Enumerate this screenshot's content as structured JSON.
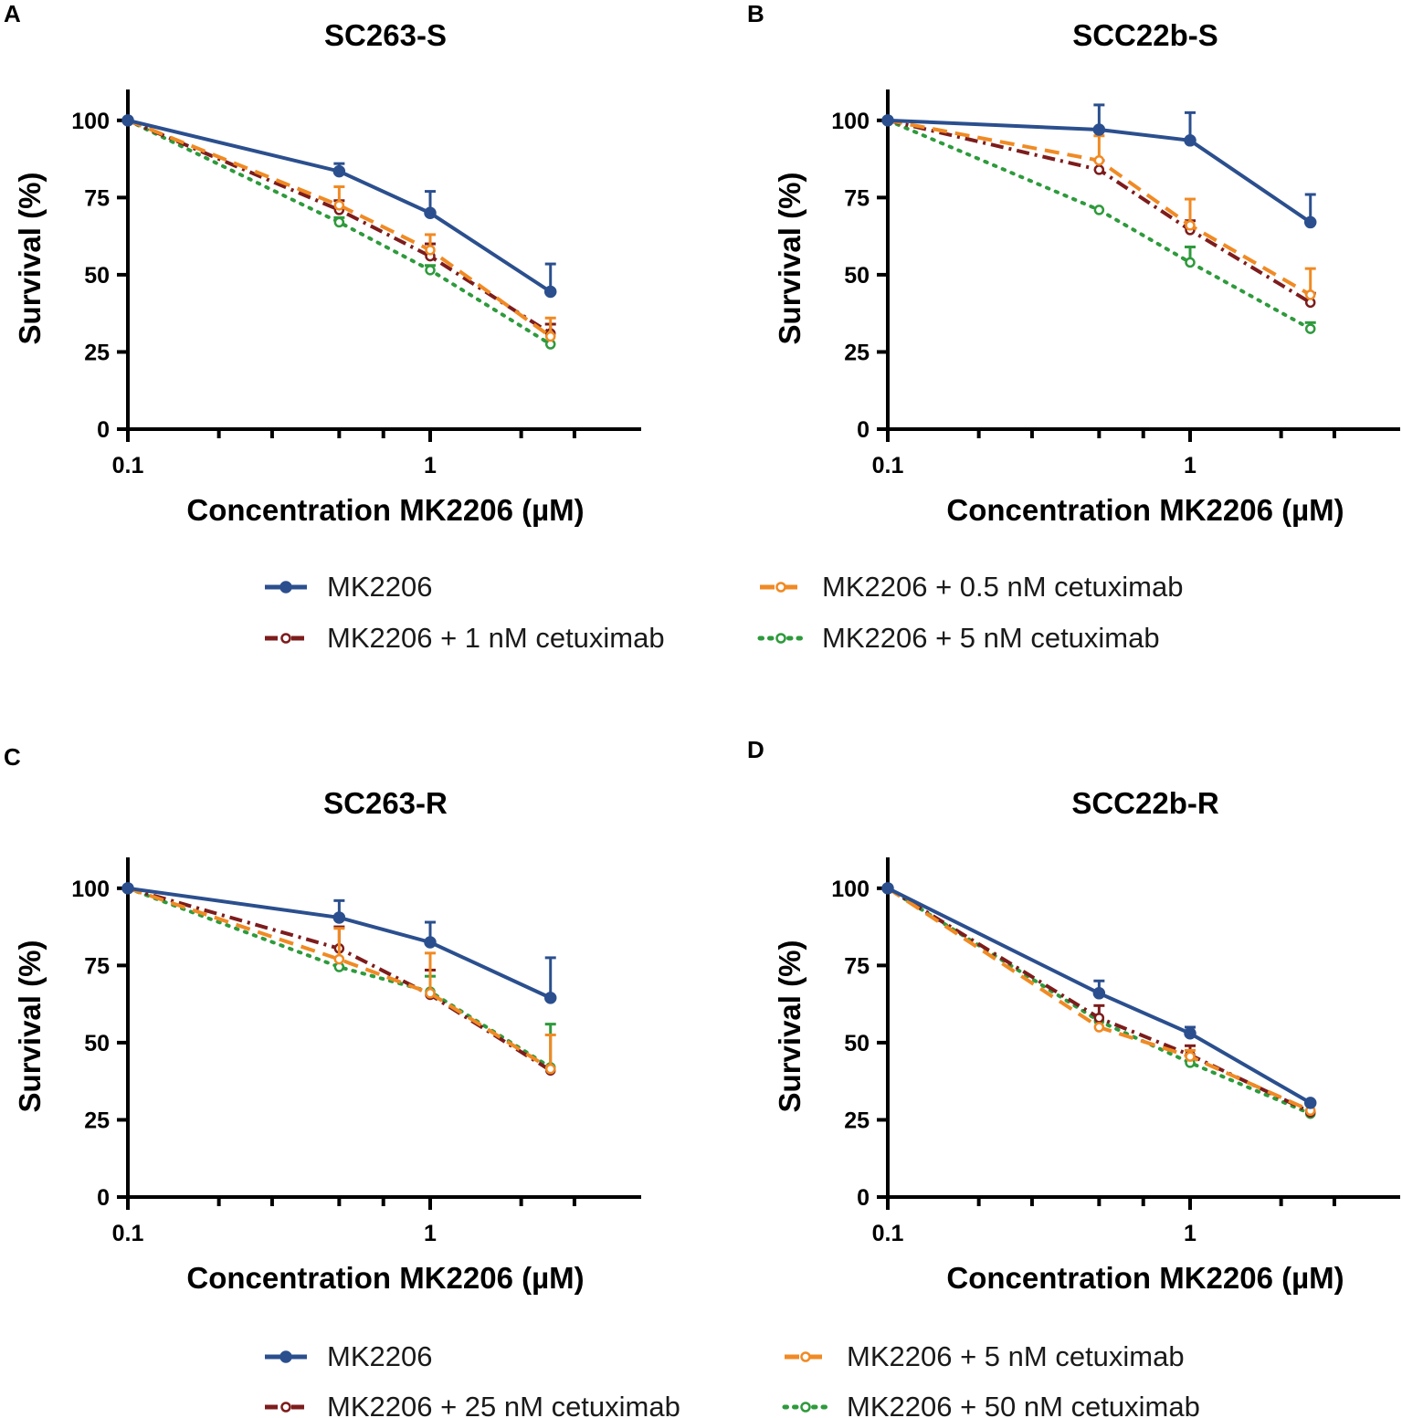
{
  "colors": {
    "MK2206": "#2b4f8e",
    "orange": "#f08a24",
    "darkred": "#7d1c1c",
    "green": "#2e9a3c",
    "axis": "#000000"
  },
  "legends": [
    {
      "items": [
        {
          "label": "MK2206",
          "style": "solid",
          "color": "#2b4f8e",
          "marker": "filled"
        },
        {
          "label": "MK2206 + 0.5 nM cetuximab",
          "style": "dashed",
          "color": "#f08a24",
          "marker": "open"
        },
        {
          "label": "MK2206 + 1 nM cetuximab",
          "style": "dashdot",
          "color": "#7d1c1c",
          "marker": "open"
        },
        {
          "label": "MK2206 + 5 nM cetuximab",
          "style": "dotted",
          "color": "#2e9a3c",
          "marker": "open"
        }
      ]
    },
    {
      "items": [
        {
          "label": "MK2206",
          "style": "solid",
          "color": "#2b4f8e",
          "marker": "filled"
        },
        {
          "label": "MK2206 + 5 nM cetuximab",
          "style": "dashed",
          "color": "#f08a24",
          "marker": "open"
        },
        {
          "label": "MK2206 + 25 nM cetuximab",
          "style": "dashdot",
          "color": "#7d1c1c",
          "marker": "open"
        },
        {
          "label": "MK2206 + 50 nM cetuximab",
          "style": "dotted",
          "color": "#2e9a3c",
          "marker": "open"
        }
      ]
    }
  ],
  "chart_data": [
    {
      "type": "line",
      "letter": "A",
      "title": "SC263-S",
      "xlabel": "Concentration MK2206 (µM)",
      "ylabel": "Survival (%)",
      "xscale": "log",
      "xlim": [
        0.1,
        5.5
      ],
      "ylim": [
        0,
        110
      ],
      "xticks": [
        {
          "v": 0.1,
          "label": "0.1"
        },
        {
          "v": 1,
          "label": "1"
        }
      ],
      "yticks": [
        0,
        25,
        50,
        75,
        100
      ],
      "x": [
        0.1,
        0.5,
        1,
        2.5
      ],
      "series": [
        {
          "name": "MK2206 + 5 nM cetuximab",
          "style": "dotted",
          "color": "#2e9a3c",
          "values": [
            100,
            67,
            51.5,
            27.5
          ],
          "err": [
            0,
            1.5,
            1.5,
            0
          ]
        },
        {
          "name": "MK2206 + 1 nM cetuximab",
          "style": "dashdot",
          "color": "#7d1c1c",
          "values": [
            100,
            71,
            56,
            31
          ],
          "err": [
            0,
            3,
            4,
            3
          ]
        },
        {
          "name": "MK2206 + 0.5 nM cetuximab",
          "style": "dashed",
          "color": "#f08a24",
          "values": [
            100,
            72.5,
            58,
            30
          ],
          "err": [
            0,
            6,
            5,
            6
          ]
        },
        {
          "name": "MK2206",
          "style": "solid",
          "color": "#2b4f8e",
          "values": [
            100,
            83.5,
            70,
            44.5
          ],
          "err": [
            0,
            2.5,
            7,
            9
          ]
        }
      ]
    },
    {
      "type": "line",
      "letter": "B",
      "title": "SCC22b-S",
      "xlabel": "Concentration MK2206 (µM)",
      "ylabel": "Survival (%)",
      "xscale": "log",
      "xlim": [
        0.1,
        5.5
      ],
      "ylim": [
        0,
        110
      ],
      "xticks": [
        {
          "v": 0.1,
          "label": "0.1"
        },
        {
          "v": 1,
          "label": "1"
        }
      ],
      "yticks": [
        0,
        25,
        50,
        75,
        100
      ],
      "x": [
        0.1,
        0.5,
        1,
        2.5
      ],
      "series": [
        {
          "name": "MK2206 + 5 nM cetuximab",
          "style": "dotted",
          "color": "#2e9a3c",
          "values": [
            100,
            71,
            54,
            32.5
          ],
          "err": [
            0,
            0,
            5,
            2
          ]
        },
        {
          "name": "MK2206 + 1 nM cetuximab",
          "style": "dashdot",
          "color": "#7d1c1c",
          "values": [
            100,
            84,
            64.5,
            41
          ],
          "err": [
            0,
            3,
            3,
            3
          ]
        },
        {
          "name": "MK2206 + 0.5 nM cetuximab",
          "style": "dashed",
          "color": "#f08a24",
          "values": [
            100,
            87,
            66,
            43.5
          ],
          "err": [
            0,
            8,
            8.5,
            8.5
          ]
        },
        {
          "name": "MK2206",
          "style": "solid",
          "color": "#2b4f8e",
          "values": [
            100,
            97,
            93.5,
            67
          ],
          "err": [
            0,
            8,
            9,
            9
          ]
        }
      ]
    },
    {
      "type": "line",
      "letter": "C",
      "title": "SC263-R",
      "xlabel": "Concentration MK2206 (µM)",
      "ylabel": "Survival (%)",
      "xscale": "log",
      "xlim": [
        0.1,
        5.5
      ],
      "ylim": [
        0,
        110
      ],
      "xticks": [
        {
          "v": 0.1,
          "label": "0.1"
        },
        {
          "v": 1,
          "label": "1"
        }
      ],
      "yticks": [
        0,
        25,
        50,
        75,
        100
      ],
      "x": [
        0.1,
        0.5,
        1,
        2.5
      ],
      "series": [
        {
          "name": "MK2206 + 50 nM cetuximab",
          "style": "dotted",
          "color": "#2e9a3c",
          "values": [
            100,
            74.5,
            66.5,
            42
          ],
          "err": [
            0,
            0,
            5,
            14
          ]
        },
        {
          "name": "MK2206 + 25 nM cetuximab",
          "style": "dashdot",
          "color": "#7d1c1c",
          "values": [
            100,
            80.5,
            65.5,
            41
          ],
          "err": [
            0,
            7,
            8,
            0
          ]
        },
        {
          "name": "MK2206 + 5 nM cetuximab",
          "style": "dashed",
          "color": "#f08a24",
          "values": [
            100,
            77,
            66,
            41.5
          ],
          "err": [
            0,
            10,
            13,
            11
          ]
        },
        {
          "name": "MK2206",
          "style": "solid",
          "color": "#2b4f8e",
          "values": [
            100,
            90.5,
            82.5,
            64.5
          ],
          "err": [
            0,
            5.5,
            6.5,
            13
          ]
        }
      ]
    },
    {
      "type": "line",
      "letter": "D",
      "title": "SCC22b-R",
      "xlabel": "Concentration MK2206 (µM)",
      "ylabel": "Survival (%)",
      "xscale": "log",
      "xlim": [
        0.1,
        5.5
      ],
      "ylim": [
        0,
        110
      ],
      "xticks": [
        {
          "v": 0.1,
          "label": "0.1"
        },
        {
          "v": 1,
          "label": "1"
        }
      ],
      "yticks": [
        0,
        25,
        50,
        75,
        100
      ],
      "x": [
        0.1,
        0.5,
        1,
        2.5
      ],
      "series": [
        {
          "name": "MK2206 + 50 nM cetuximab",
          "style": "dotted",
          "color": "#2e9a3c",
          "values": [
            100,
            57,
            43.5,
            27
          ],
          "err": [
            0,
            0,
            0,
            0
          ]
        },
        {
          "name": "MK2206 + 25 nM cetuximab",
          "style": "dashdot",
          "color": "#7d1c1c",
          "values": [
            100,
            58,
            46,
            27.5
          ],
          "err": [
            0,
            4,
            3,
            0
          ]
        },
        {
          "name": "MK2206 + 5 nM cetuximab",
          "style": "dashed",
          "color": "#f08a24",
          "values": [
            100,
            55,
            45.5,
            28
          ],
          "err": [
            0,
            0,
            2,
            0
          ]
        },
        {
          "name": "MK2206",
          "style": "solid",
          "color": "#2b4f8e",
          "values": [
            100,
            66,
            53,
            30.5
          ],
          "err": [
            0,
            4,
            2,
            0
          ]
        }
      ]
    }
  ]
}
